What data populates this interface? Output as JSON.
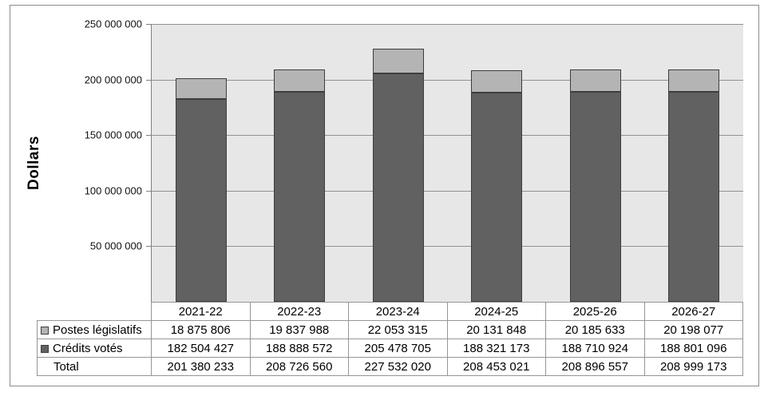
{
  "chart_data": {
    "type": "bar",
    "stacked": true,
    "title": "",
    "ylabel": "Dollars",
    "xlabel": "",
    "categories": [
      "2021-22",
      "2022-23",
      "2023-24",
      "2024-25",
      "2025-26",
      "2026-27"
    ],
    "series": [
      {
        "name": "Postes législatifs",
        "color": "#b4b4b4",
        "border_color": "#3d3d3d",
        "values": [
          18875806,
          19837988,
          22053315,
          20131848,
          20185633,
          20198077
        ]
      },
      {
        "name": "Crédits votés",
        "color": "#616161",
        "border_color": "#3d3d3d",
        "values": [
          182504427,
          188888572,
          205478705,
          188321173,
          188710924,
          188801096
        ]
      }
    ],
    "stack_order_bottom_to_top": [
      "Crédits votés",
      "Postes législatifs"
    ],
    "totals": {
      "label": "Total",
      "values": [
        201380233,
        208726560,
        227532020,
        208453021,
        208896557,
        208999173
      ]
    },
    "ylim": [
      0,
      250000000
    ],
    "ytick_step": 50000000,
    "ytick_labels": [
      "250 000 000",
      "200 000 000",
      "150 000 000",
      "100 000 000",
      "50 000 000"
    ],
    "grid": true,
    "legend_position": "table-row-headers",
    "number_format": "space-thousands",
    "plot_bg": "#e7e7e7",
    "gridline_color": "#919191",
    "axis_color": "#808080",
    "bar_border_color": "#3d3d3d",
    "table_border_color": "#969696",
    "frame_border_color": "#8b8b8b"
  }
}
